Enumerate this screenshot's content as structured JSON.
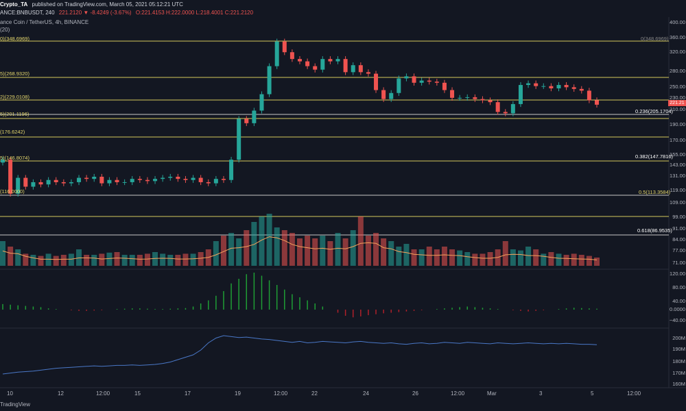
{
  "header": {
    "publisher": "Crypto_TA",
    "published_text": "published on TradingView.com, March 05, 2021 05:12:21 UTC",
    "symbol": "ANCE:BNBUSDT, 240",
    "change": "221.2120 ▼ -8.4249 (-3.67%)",
    "ohlc": "O:221.4153 H:222.0000 L:218.4001 C:221.2120",
    "subtitle": "ance Coin / TetherUS, 4h, BINANCE",
    "ma_label": "(20)"
  },
  "price_axis": {
    "ticks": [
      "400.00",
      "360.00",
      "320.00",
      "280.00",
      "250.00",
      "230.00",
      "210.00",
      "190.00",
      "170.00",
      "155.00",
      "143.00",
      "131.00",
      "119.00",
      "109.00",
      "99.00",
      "91.00",
      "84.00",
      "77.00",
      "71.00"
    ],
    "current_price": "221.21"
  },
  "macd_axis": {
    "ticks": [
      "120.00",
      "80.00",
      "40.00",
      "0.0000",
      "−40.00"
    ]
  },
  "vol_axis": {
    "ticks": [
      "200M",
      "190M",
      "180M",
      "170M",
      "160M"
    ]
  },
  "time_axis": {
    "ticks": [
      "10",
      "12",
      "12:00",
      "15",
      "17",
      "19",
      "12:00",
      "22",
      "24",
      "26",
      "12:00",
      "Mar",
      "3",
      "5",
      "12:00"
    ]
  },
  "fib_left": [
    {
      "label": "0)(348.6969)"
    },
    {
      "label": "5)(268.9320)"
    },
    {
      "label": "2)(229.0108)"
    },
    {
      "label": "5)(201.1196)"
    },
    {
      "label": "(176.6242)"
    },
    {
      "label": "5)(146.8074)"
    },
    {
      "label": "(116.0000)"
    }
  ],
  "fib_right": [
    {
      "label": "0(348.6969)"
    },
    {
      "label": "0.236(205.1704)"
    },
    {
      "label": "0.382(147.7816)"
    },
    {
      "label": "0.5(113.3584)"
    },
    {
      "label": "0.618(86.9535)"
    }
  ],
  "colors": {
    "background": "#131722",
    "up": "#26a69a",
    "down": "#ef5350",
    "fib_yellow": "#d6c85c",
    "fib_white": "#c8c8c8",
    "ma": "#f7a35c",
    "macd_up": "#1f9e35",
    "macd_down": "#b0202a",
    "obv": "#4a78c8"
  },
  "brand": "TradingView",
  "chart_data": {
    "type": "candlestick",
    "price_series_close": [
      150,
      118,
      132,
      124,
      128,
      126,
      130,
      128,
      127,
      128,
      132,
      131,
      133,
      127,
      130,
      128,
      128,
      131,
      130,
      129,
      131,
      132,
      133,
      131,
      130,
      132,
      128,
      127,
      131,
      130,
      150,
      200,
      194,
      212,
      238,
      290,
      345,
      320,
      305,
      300,
      290,
      283,
      305,
      300,
      305,
      278,
      292,
      278,
      275,
      245,
      230,
      240,
      266,
      270,
      258,
      262,
      260,
      258,
      245,
      232,
      232,
      233,
      230,
      228,
      225,
      210,
      208,
      222,
      254,
      257,
      252,
      252,
      248,
      254,
      250,
      247,
      244,
      228,
      221
    ],
    "volume_level": [
      0.45,
      0.35,
      0.3,
      0.22,
      0.2,
      0.18,
      0.22,
      0.18,
      0.2,
      0.22,
      0.3,
      0.2,
      0.2,
      0.22,
      0.24,
      0.25,
      0.2,
      0.2,
      0.2,
      0.22,
      0.25,
      0.22,
      0.2,
      0.2,
      0.22,
      0.22,
      0.25,
      0.3,
      0.45,
      0.55,
      0.6,
      0.5,
      0.65,
      0.8,
      0.9,
      0.95,
      0.7,
      0.65,
      0.6,
      0.5,
      0.55,
      0.5,
      0.55,
      0.45,
      0.6,
      0.5,
      0.65,
      0.9,
      0.55,
      0.6,
      0.5,
      0.45,
      0.35,
      0.4,
      0.3,
      0.3,
      0.35,
      0.3,
      0.35,
      0.3,
      0.28,
      0.25,
      0.22,
      0.22,
      0.25,
      0.3,
      0.45,
      0.3,
      0.28,
      0.35,
      0.3,
      0.22,
      0.25,
      0.22,
      0.2,
      0.22,
      0.2,
      0.18,
      0.15
    ],
    "macd_level": [
      18,
      16,
      14,
      12,
      10,
      8,
      4,
      2,
      0,
      -2,
      -4,
      -4,
      -3,
      -2,
      0,
      2,
      3,
      4,
      4,
      3,
      2,
      2,
      3,
      4,
      5,
      10,
      20,
      30,
      45,
      60,
      85,
      100,
      115,
      120,
      110,
      95,
      80,
      65,
      50,
      40,
      30,
      20,
      10,
      0,
      -10,
      -20,
      -25,
      -22,
      -18,
      -15,
      -12,
      -10,
      -8,
      -6,
      -4,
      -2,
      0,
      2,
      4,
      6,
      8,
      10,
      8,
      6,
      4,
      2,
      0,
      -2,
      -4,
      -6,
      -4,
      -2,
      0,
      2,
      4,
      6,
      5,
      4,
      3
    ],
    "obv_level": [
      0.2,
      0.22,
      0.24,
      0.25,
      0.26,
      0.28,
      0.3,
      0.32,
      0.33,
      0.34,
      0.35,
      0.36,
      0.37,
      0.36,
      0.37,
      0.38,
      0.38,
      0.39,
      0.38,
      0.39,
      0.4,
      0.42,
      0.45,
      0.5,
      0.55,
      0.6,
      0.7,
      0.85,
      0.95,
      1.0,
      0.98,
      0.96,
      0.97,
      0.95,
      0.93,
      0.92,
      0.9,
      0.88,
      0.86,
      0.88,
      0.85,
      0.86,
      0.88,
      0.87,
      0.86,
      0.85,
      0.87,
      0.88,
      0.86,
      0.85,
      0.84,
      0.85,
      0.83,
      0.82,
      0.84,
      0.85,
      0.83,
      0.84,
      0.86,
      0.85,
      0.84,
      0.86,
      0.85,
      0.84,
      0.83,
      0.85,
      0.84,
      0.83,
      0.84,
      0.85,
      0.84,
      0.83,
      0.84,
      0.83,
      0.84,
      0.83,
      0.82,
      0.82,
      0.81
    ]
  }
}
